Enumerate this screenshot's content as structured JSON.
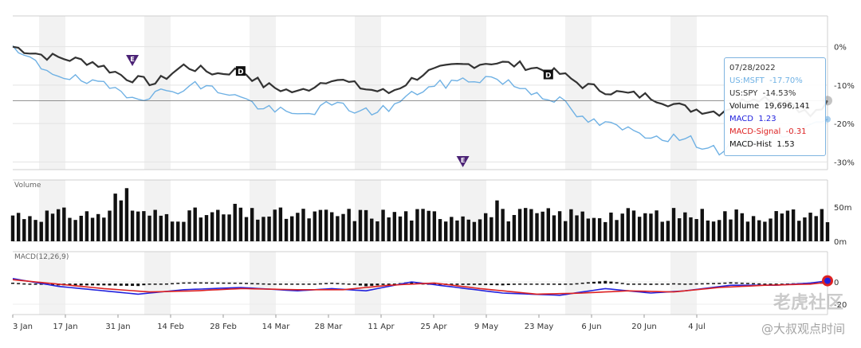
{
  "chart_data": [
    {
      "type": "line",
      "panel": "price",
      "series": [
        {
          "name": "US:MSFT",
          "color": "#6fb1e4"
        },
        {
          "name": "US:SPY",
          "color": "#333333"
        }
      ],
      "ylim": [
        -32,
        8
      ],
      "yticks": [
        {
          "v": 0,
          "label": "0%"
        },
        {
          "v": -10,
          "label": "-10%"
        },
        {
          "v": -20,
          "label": "-20%"
        },
        {
          "v": -30,
          "label": "-30%"
        }
      ],
      "grid": true,
      "events": [
        {
          "label": "E",
          "date_index": 21,
          "position": "above"
        },
        {
          "label": "D",
          "date_index": 40,
          "position": "inline"
        },
        {
          "label": "E",
          "date_index": 79,
          "position": "below"
        },
        {
          "label": "D",
          "date_index": 94,
          "position": "inline"
        }
      ]
    },
    {
      "type": "bar",
      "panel": "volume",
      "title": "Volume",
      "yticks": [
        {
          "v": 50,
          "label": "50m"
        },
        {
          "v": 0,
          "label": "0m"
        }
      ],
      "unit": "m"
    },
    {
      "type": "line",
      "panel": "macd",
      "title": "MACD(12,26,9)",
      "series": [
        {
          "name": "MACD",
          "color": "#2222dd"
        },
        {
          "name": "MACD-Signal",
          "color": "#dd2222"
        },
        {
          "name": "MACD-Hist",
          "color": "#111111"
        }
      ],
      "yticks": [
        {
          "v": 0,
          "label": "0"
        },
        {
          "v": -20,
          "label": "-20"
        }
      ]
    }
  ],
  "x_axis": {
    "ticks": [
      "3 Jan",
      "17 Jan",
      "31 Jan",
      "14 Feb",
      "28 Feb",
      "14 Mar",
      "28 Mar",
      "11 Apr",
      "25 Apr",
      "9 May",
      "23 May",
      "6 Jun",
      "20 Jun",
      "4 Jul"
    ]
  },
  "tooltip": {
    "date": "07/28/2022",
    "msft_label": "US:MSFT",
    "msft_value": "-17.70%",
    "spy_label": "US:SPY",
    "spy_value": "-14.53%",
    "volume_label": "Volume",
    "volume_value": "19,696,141",
    "macd_label": "MACD",
    "macd_value": "1.23",
    "signal_label": "MACD-Signal",
    "signal_value": "-0.31",
    "hist_label": "MACD-Hist",
    "hist_value": "1.53"
  },
  "watermark": "老虎社区",
  "credit": "@大叔观点时间",
  "colors": {
    "msft": "#6fb1e4",
    "spy": "#333333",
    "macd": "#2222dd",
    "signal": "#dd2222",
    "band": "#f2f2f2"
  }
}
